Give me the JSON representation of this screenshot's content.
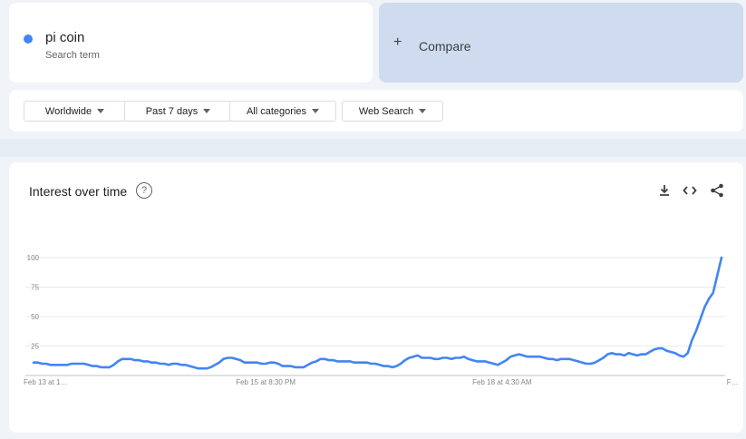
{
  "search_term": {
    "name": "pi coin",
    "subtitle": "Search term",
    "color": "#4285f4"
  },
  "compare": {
    "plus": "+",
    "label": "Compare"
  },
  "filters": {
    "region": "Worldwide",
    "period": "Past 7 days",
    "category": "All categories",
    "search_type": "Web Search"
  },
  "chart_section": {
    "title": "Interest over time",
    "help_icon": "help-circle-icon",
    "actions": [
      "download-icon",
      "embed-code-icon",
      "share-icon"
    ]
  },
  "chart_data": {
    "type": "line",
    "title": "",
    "xlabel": "",
    "ylabel": "",
    "ylim": [
      0,
      100
    ],
    "yticks": [
      25,
      50,
      75,
      100
    ],
    "xtick_labels": [
      {
        "label": "Feb 13 at 1…",
        "index": 0
      },
      {
        "label": "Feb 15 at 8:30 PM",
        "index": 55
      },
      {
        "label": "Feb 18 at 4:30 AM",
        "index": 111
      },
      {
        "label": "F…",
        "index": 167
      }
    ],
    "grid": true,
    "series": [
      {
        "color": "#4285f4",
        "partial_from_index": 165,
        "values": [
          11,
          11,
          10,
          10,
          9,
          9,
          9,
          9,
          9,
          10,
          10,
          10,
          10,
          9,
          8,
          8,
          7,
          7,
          7,
          9,
          12,
          14,
          14,
          14,
          13,
          13,
          12,
          12,
          11,
          11,
          10,
          10,
          9,
          10,
          10,
          9,
          9,
          8,
          7,
          6,
          6,
          6,
          7,
          9,
          11,
          14,
          15,
          15,
          14,
          13,
          11,
          11,
          11,
          11,
          10,
          10,
          11,
          11,
          10,
          8,
          8,
          8,
          7,
          7,
          7,
          9,
          11,
          12,
          14,
          14,
          13,
          13,
          12,
          12,
          12,
          12,
          11,
          11,
          11,
          11,
          10,
          10,
          9,
          8,
          8,
          7,
          8,
          10,
          13,
          15,
          16,
          17,
          15,
          15,
          15,
          14,
          14,
          15,
          15,
          14,
          15,
          15,
          16,
          14,
          13,
          12,
          12,
          12,
          11,
          10,
          9,
          11,
          13,
          16,
          17,
          18,
          17,
          16,
          16,
          16,
          16,
          15,
          14,
          14,
          13,
          14,
          14,
          14,
          13,
          12,
          11,
          10,
          10,
          11,
          13,
          15,
          18,
          19,
          18,
          18,
          17,
          19,
          18,
          17,
          18,
          18,
          20,
          22,
          23,
          23,
          21,
          20,
          19,
          17,
          16,
          19,
          30,
          38,
          48,
          58,
          65,
          70,
          85,
          100
        ]
      }
    ]
  }
}
